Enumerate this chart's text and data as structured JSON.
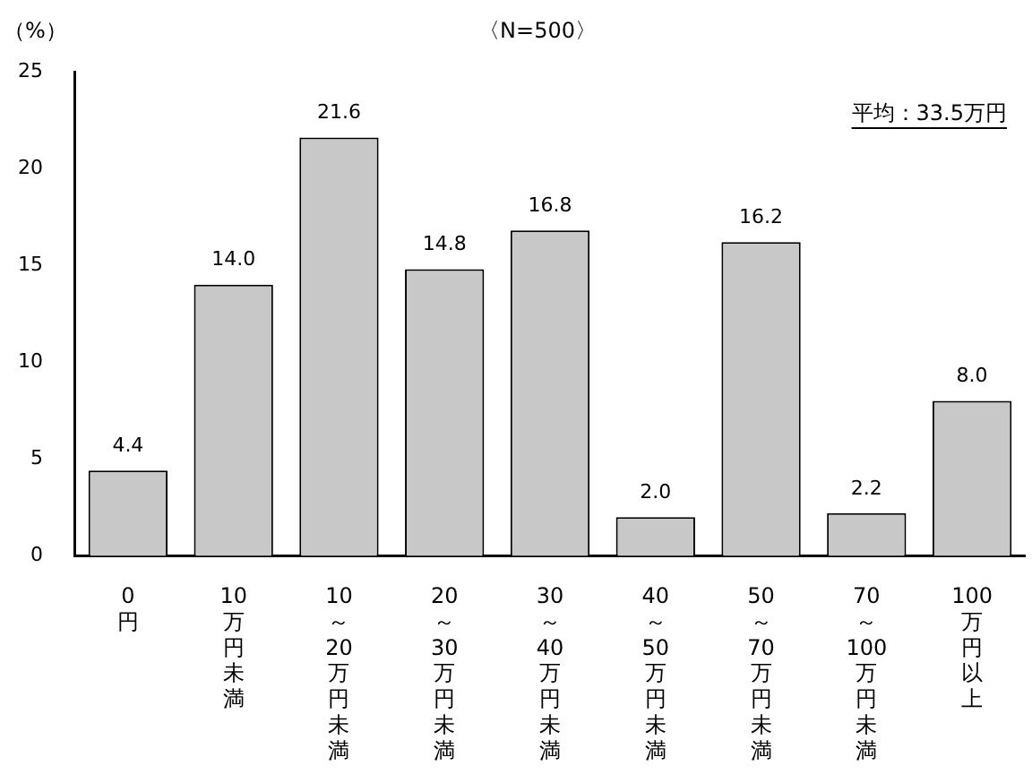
{
  "chart_data": {
    "type": "bar",
    "subtitle": "〈N=500〉",
    "ylabel": "（%）",
    "categories": [
      "0円",
      "10万円未満",
      "10～20万円未満",
      "20～30万円未満",
      "30～40万円未満",
      "40～50万円未満",
      "50～70万円未満",
      "70～100万円未満",
      "100万円以上"
    ],
    "values": [
      4.4,
      14.0,
      21.6,
      14.8,
      16.8,
      2.0,
      16.2,
      2.2,
      8.0
    ],
    "value_labels": [
      "4.4",
      "14.0",
      "21.6",
      "14.8",
      "16.8",
      "2.0",
      "16.2",
      "2.2",
      "8.0"
    ],
    "color": "#c8c8c8",
    "ylim": [
      0,
      25
    ],
    "yticks": [
      0,
      5,
      10,
      15,
      20,
      25
    ],
    "grid": false,
    "legend": false,
    "annotations": [
      "平均：33.5万円"
    ]
  }
}
